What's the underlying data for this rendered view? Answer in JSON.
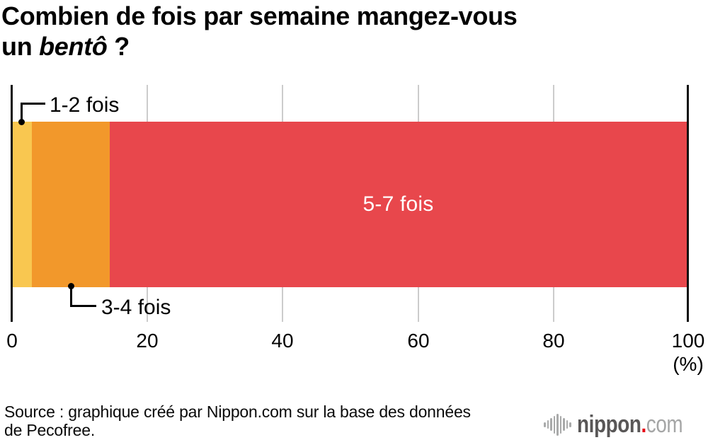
{
  "title": {
    "line1": "Combien de fois par semaine mangez-vous",
    "line2_pre": "un ",
    "line2_italic": "bentô",
    "line2_post": " ?"
  },
  "chart_data": {
    "type": "bar",
    "orientation": "horizontal",
    "stacked": true,
    "title": "Combien de fois par semaine mangez-vous un bentô ?",
    "categories": [
      "1-2 fois",
      "3-4 fois",
      "5-7 fois"
    ],
    "values": [
      2.8,
      11.6,
      85.6
    ],
    "unit": "%",
    "colors": [
      "#f9c750",
      "#f2982b",
      "#e8474c"
    ],
    "xlim": [
      0,
      100
    ],
    "x_ticks": [
      "0",
      "20",
      "40",
      "60",
      "80",
      "100"
    ],
    "x_unit_label": "(%)",
    "grid": true,
    "legend_position": "labels-on-chart"
  },
  "callouts": {
    "seg1_label": "1-2 fois",
    "seg2_label": "3-4 fois",
    "seg3_label": "5-7 fois"
  },
  "axis": {
    "ticks": [
      "0",
      "20",
      "40",
      "60",
      "80",
      "100"
    ],
    "unit": "(%)"
  },
  "source": {
    "line1": "Source : graphique créé par Nippon.com sur la base des données",
    "line2": "de Pecofree."
  },
  "logo": {
    "wordmark": "nippon",
    "dot": ".",
    "suffix": "com"
  },
  "colors": {
    "segment_1_2": "#f9c750",
    "segment_3_4": "#f2982b",
    "segment_5_7": "#e8474c",
    "gridline": "#cccccc",
    "axis_edge": "#111111",
    "logo_dark": "#595757",
    "logo_light": "#a5a6a6",
    "logo_dot": "#e60012"
  }
}
